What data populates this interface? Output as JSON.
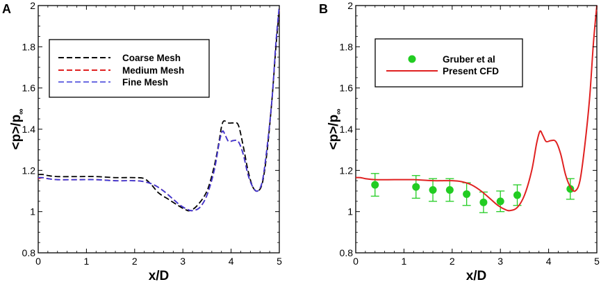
{
  "chart_data": [
    {
      "type": "line",
      "panel_label": "A",
      "xlabel": "x/D",
      "ylabel_main": "<p>/p",
      "ylabel_sub": "∞",
      "xlim": [
        0,
        5
      ],
      "ylim": [
        0.8,
        2
      ],
      "xticks": [
        0,
        1,
        2,
        3,
        4,
        5
      ],
      "yticks": [
        0.8,
        1,
        1.2,
        1.4,
        1.6,
        1.8,
        2
      ],
      "ytick_labels": [
        "0.8",
        "1",
        "1.2",
        "1.4",
        "1.6",
        "1.8",
        "2"
      ],
      "legend_position": "upper-left",
      "series": [
        {
          "name": "Coarse Mesh",
          "color": "#000000",
          "style": "dashed",
          "x": [
            0,
            0.1,
            0.2,
            0.4,
            0.8,
            1.2,
            1.6,
            2.0,
            2.2,
            2.35,
            2.5,
            2.7,
            2.9,
            3.05,
            3.15,
            3.3,
            3.5,
            3.65,
            3.75,
            3.8,
            3.85,
            3.95,
            4.05,
            4.15,
            4.25,
            4.35,
            4.45,
            4.55,
            4.65,
            4.75,
            4.85,
            4.93,
            5.0
          ],
          "y": [
            1.18,
            1.18,
            1.175,
            1.17,
            1.17,
            1.17,
            1.165,
            1.165,
            1.16,
            1.13,
            1.09,
            1.06,
            1.03,
            1.01,
            1.005,
            1.03,
            1.1,
            1.22,
            1.34,
            1.41,
            1.44,
            1.43,
            1.43,
            1.42,
            1.32,
            1.2,
            1.12,
            1.1,
            1.14,
            1.3,
            1.55,
            1.8,
            1.98
          ]
        },
        {
          "name": "Medium Mesh",
          "color": "#e02020",
          "style": "dashed",
          "x": [
            0,
            0.1,
            0.2,
            0.4,
            0.8,
            1.2,
            1.6,
            2.0,
            2.2,
            2.4,
            2.6,
            2.8,
            2.95,
            3.1,
            3.2,
            3.35,
            3.5,
            3.65,
            3.75,
            3.82,
            3.88,
            3.95,
            4.05,
            4.15,
            4.25,
            4.35,
            4.45,
            4.55,
            4.65,
            4.75,
            4.85,
            4.93,
            5.0
          ],
          "y": [
            1.16,
            1.165,
            1.16,
            1.155,
            1.155,
            1.155,
            1.15,
            1.15,
            1.145,
            1.13,
            1.1,
            1.06,
            1.03,
            1.01,
            1.005,
            1.02,
            1.08,
            1.2,
            1.33,
            1.39,
            1.37,
            1.34,
            1.345,
            1.34,
            1.28,
            1.18,
            1.12,
            1.1,
            1.15,
            1.32,
            1.55,
            1.82,
            1.99
          ]
        },
        {
          "name": "Fine Mesh",
          "color": "#3a3ad8",
          "style": "dashed",
          "x": [
            0,
            0.1,
            0.2,
            0.4,
            0.8,
            1.2,
            1.6,
            2.0,
            2.2,
            2.4,
            2.6,
            2.8,
            2.95,
            3.1,
            3.2,
            3.35,
            3.5,
            3.65,
            3.75,
            3.82,
            3.88,
            3.95,
            4.05,
            4.15,
            4.25,
            4.35,
            4.45,
            4.55,
            4.65,
            4.75,
            4.85,
            4.93,
            5.0
          ],
          "y": [
            1.165,
            1.165,
            1.16,
            1.155,
            1.155,
            1.155,
            1.15,
            1.15,
            1.145,
            1.13,
            1.1,
            1.06,
            1.03,
            1.01,
            1.005,
            1.02,
            1.08,
            1.2,
            1.33,
            1.39,
            1.37,
            1.34,
            1.345,
            1.34,
            1.28,
            1.18,
            1.12,
            1.1,
            1.15,
            1.32,
            1.55,
            1.82,
            2.0
          ]
        }
      ]
    },
    {
      "type": "line",
      "panel_label": "B",
      "xlabel": "x/D",
      "ylabel_main": "<p>/p",
      "ylabel_sub": "∞",
      "xlim": [
        0,
        5
      ],
      "ylim": [
        0.8,
        2
      ],
      "xticks": [
        0,
        1,
        2,
        3,
        4,
        5
      ],
      "yticks": [
        0.8,
        1,
        1.2,
        1.4,
        1.6,
        1.8,
        2
      ],
      "ytick_labels": [
        "0.8",
        "1",
        "1.2",
        "1.4",
        "1.6",
        "1.8",
        "2"
      ],
      "legend_position": "upper-left",
      "series": [
        {
          "name": "Gruber et al",
          "color": "#22cc22",
          "style": "markers-errorbars",
          "x": [
            0.4,
            1.25,
            1.6,
            1.95,
            2.3,
            2.65,
            3.0,
            3.35,
            4.45
          ],
          "y": [
            1.13,
            1.12,
            1.105,
            1.105,
            1.085,
            1.045,
            1.05,
            1.08,
            1.11
          ],
          "err": [
            0.055,
            0.055,
            0.055,
            0.055,
            0.055,
            0.05,
            0.05,
            0.05,
            0.05
          ]
        },
        {
          "name": "Present CFD",
          "color": "#e02020",
          "style": "solid",
          "x": [
            0,
            0.1,
            0.2,
            0.4,
            0.8,
            1.2,
            1.6,
            2.0,
            2.2,
            2.4,
            2.6,
            2.8,
            2.95,
            3.1,
            3.2,
            3.35,
            3.5,
            3.65,
            3.75,
            3.82,
            3.88,
            3.95,
            4.05,
            4.15,
            4.25,
            4.35,
            4.45,
            4.55,
            4.65,
            4.75,
            4.85,
            4.93,
            5.0
          ],
          "y": [
            1.165,
            1.165,
            1.16,
            1.155,
            1.155,
            1.155,
            1.15,
            1.15,
            1.145,
            1.13,
            1.1,
            1.06,
            1.03,
            1.01,
            1.005,
            1.02,
            1.08,
            1.2,
            1.33,
            1.39,
            1.37,
            1.34,
            1.345,
            1.34,
            1.28,
            1.18,
            1.12,
            1.1,
            1.15,
            1.32,
            1.55,
            1.82,
            2.0
          ]
        }
      ]
    }
  ]
}
